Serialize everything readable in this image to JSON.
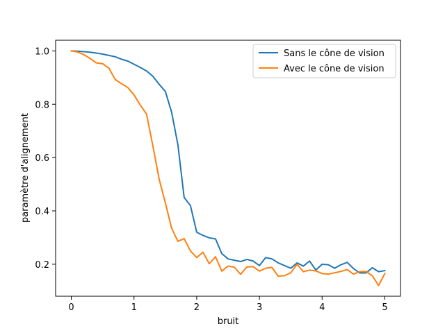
{
  "chart_data": {
    "type": "line",
    "xlabel": "bruit",
    "ylabel": "paramètre d'alignement",
    "xlim": [
      -0.25,
      5.25
    ],
    "ylim": [
      0.08,
      1.04
    ],
    "xticks": [
      0,
      1,
      2,
      3,
      4,
      5
    ],
    "yticks": [
      0.2,
      0.4,
      0.6,
      0.8,
      1.0
    ],
    "xtick_labels": [
      "0",
      "1",
      "2",
      "3",
      "4",
      "5"
    ],
    "ytick_labels": [
      "0.2",
      "0.4",
      "0.6",
      "0.8",
      "1.0"
    ],
    "grid": false,
    "legend_position": "top-right",
    "x": [
      0,
      0.1,
      0.2,
      0.3,
      0.4,
      0.5,
      0.6,
      0.7,
      0.8,
      0.9,
      1.0,
      1.1,
      1.2,
      1.3,
      1.4,
      1.5,
      1.6,
      1.7,
      1.8,
      1.9,
      2.0,
      2.1,
      2.2,
      2.3,
      2.4,
      2.5,
      2.6,
      2.7,
      2.8,
      2.9,
      3.0,
      3.1,
      3.2,
      3.3,
      3.4,
      3.5,
      3.6,
      3.7,
      3.8,
      3.9,
      4.0,
      4.1,
      4.2,
      4.3,
      4.4,
      4.5,
      4.6,
      4.7,
      4.8,
      4.9,
      5.0
    ],
    "series": [
      {
        "name": "Sans le cône de vision",
        "color": "#1f77b4",
        "values": [
          1.0,
          0.999,
          0.997,
          0.995,
          0.992,
          0.988,
          0.983,
          0.978,
          0.969,
          0.962,
          0.95,
          0.938,
          0.925,
          0.905,
          0.875,
          0.848,
          0.77,
          0.648,
          0.45,
          0.42,
          0.32,
          0.308,
          0.299,
          0.295,
          0.24,
          0.22,
          0.215,
          0.21,
          0.218,
          0.212,
          0.195,
          0.225,
          0.22,
          0.205,
          0.195,
          0.185,
          0.205,
          0.193,
          0.212,
          0.178,
          0.2,
          0.198,
          0.185,
          0.198,
          0.207,
          0.184,
          0.167,
          0.167,
          0.187,
          0.172,
          0.176
        ]
      },
      {
        "name": "Avec le cône de vision",
        "color": "#ff7f0e",
        "values": [
          1.0,
          0.996,
          0.986,
          0.972,
          0.955,
          0.952,
          0.935,
          0.893,
          0.877,
          0.863,
          0.835,
          0.797,
          0.763,
          0.645,
          0.52,
          0.43,
          0.335,
          0.286,
          0.296,
          0.25,
          0.225,
          0.245,
          0.202,
          0.228,
          0.174,
          0.193,
          0.189,
          0.162,
          0.19,
          0.191,
          0.174,
          0.185,
          0.188,
          0.155,
          0.157,
          0.168,
          0.2,
          0.172,
          0.178,
          0.175,
          0.165,
          0.163,
          0.168,
          0.173,
          0.18,
          0.163,
          0.172,
          0.173,
          0.157,
          0.12,
          0.165
        ]
      }
    ]
  }
}
